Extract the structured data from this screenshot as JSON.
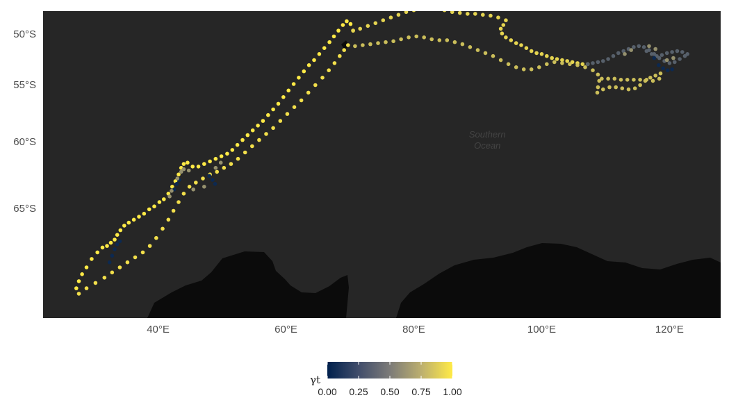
{
  "map": {
    "ocean_label": [
      "Southern",
      "Ocean"
    ],
    "y_axis_labels": [
      {
        "lat": -50,
        "label": "50°S"
      },
      {
        "lat": -55,
        "label": "55°S"
      },
      {
        "lat": -60,
        "label": "60°S"
      },
      {
        "lat": -65,
        "label": "65°S"
      }
    ],
    "x_axis_labels": [
      {
        "lon": 40,
        "label": "40°E"
      },
      {
        "lon": 60,
        "label": "60°E"
      },
      {
        "lon": 80,
        "label": "80°E"
      },
      {
        "lon": 100,
        "label": "100°E"
      },
      {
        "lon": 120,
        "label": "120°E"
      }
    ],
    "colors": {
      "ocean": "#262626",
      "land": "#0b0b0b",
      "low": "#00204d",
      "mid": "#7c7b78",
      "high": "#ffea46"
    }
  },
  "legend": {
    "title": "γt",
    "ticks": [
      "0.00",
      "0.25",
      "0.50",
      "0.75",
      "1.00"
    ],
    "range": [
      0,
      1
    ]
  },
  "chart_data": {
    "type": "scatter",
    "x_label": "",
    "y_label": "",
    "xlim": [
      22,
      128
    ],
    "ylim": [
      -71.5,
      -47.5
    ],
    "tracks": [
      {
        "points": [
          [
            27.2,
            -69.9
          ],
          [
            27.6,
            -69.5
          ],
          [
            28.1,
            -69.1
          ],
          [
            28.8,
            -68.7
          ],
          [
            29.6,
            -68.2
          ],
          [
            30.5,
            -67.8
          ],
          [
            31.3,
            -67.5
          ],
          [
            32.0,
            -67.4
          ],
          [
            32.6,
            -67.2
          ],
          [
            33.2,
            -67.0
          ],
          [
            33.6,
            -66.7
          ],
          [
            34.1,
            -66.4
          ],
          [
            34.7,
            -66.1
          ],
          [
            35.4,
            -65.9
          ],
          [
            36.2,
            -65.7
          ],
          [
            37.0,
            -65.5
          ],
          [
            37.8,
            -65.3
          ],
          [
            38.6,
            -65.0
          ],
          [
            39.4,
            -64.8
          ],
          [
            40.2,
            -64.5
          ],
          [
            40.9,
            -64.3
          ],
          [
            41.6,
            -63.9
          ],
          [
            42.2,
            -63.4
          ],
          [
            42.7,
            -63.0
          ],
          [
            43.2,
            -62.5
          ],
          [
            43.6,
            -62.0
          ],
          [
            44.0,
            -61.7
          ],
          [
            44.6,
            -61.6
          ],
          [
            45.4,
            -61.9
          ],
          [
            46.3,
            -61.9
          ],
          [
            47.2,
            -61.7
          ],
          [
            48.1,
            -61.5
          ],
          [
            49.0,
            -61.3
          ],
          [
            49.9,
            -61.1
          ],
          [
            50.8,
            -60.9
          ],
          [
            51.6,
            -60.6
          ],
          [
            52.4,
            -60.2
          ],
          [
            53.2,
            -59.8
          ],
          [
            54.0,
            -59.4
          ],
          [
            54.8,
            -59.0
          ],
          [
            55.6,
            -58.6
          ],
          [
            56.4,
            -58.2
          ],
          [
            57.2,
            -57.7
          ],
          [
            58.0,
            -57.2
          ],
          [
            58.8,
            -56.7
          ],
          [
            59.6,
            -56.1
          ],
          [
            60.4,
            -55.5
          ],
          [
            61.2,
            -54.9
          ],
          [
            62.0,
            -54.3
          ],
          [
            62.8,
            -53.7
          ],
          [
            63.6,
            -53.1
          ],
          [
            64.4,
            -52.6
          ],
          [
            65.2,
            -52.0
          ],
          [
            66.0,
            -51.4
          ],
          [
            66.8,
            -50.8
          ],
          [
            67.5,
            -50.2
          ],
          [
            68.2,
            -49.6
          ],
          [
            68.9,
            -49.0
          ],
          [
            69.5,
            -48.6
          ],
          [
            70.1,
            -48.9
          ],
          [
            70.5,
            -49.6
          ]
        ],
        "gamma": 1.0
      },
      {
        "points": [
          [
            27.6,
            -70.2
          ],
          [
            28.8,
            -69.9
          ],
          [
            30.2,
            -69.6
          ],
          [
            31.6,
            -69.3
          ],
          [
            32.8,
            -69.0
          ],
          [
            34.0,
            -68.7
          ],
          [
            35.2,
            -68.4
          ],
          [
            36.4,
            -68.1
          ],
          [
            37.6,
            -67.8
          ],
          [
            38.7,
            -67.4
          ],
          [
            39.7,
            -66.9
          ],
          [
            40.7,
            -66.3
          ],
          [
            41.6,
            -65.7
          ],
          [
            42.4,
            -65.1
          ],
          [
            43.2,
            -64.5
          ],
          [
            44.0,
            -63.9
          ],
          [
            44.9,
            -63.4
          ],
          [
            45.9,
            -63.1
          ],
          [
            47.0,
            -62.8
          ],
          [
            48.1,
            -62.5
          ],
          [
            49.2,
            -62.3
          ],
          [
            50.3,
            -62.0
          ],
          [
            51.4,
            -61.7
          ],
          [
            52.5,
            -61.3
          ],
          [
            53.6,
            -60.8
          ],
          [
            54.7,
            -60.3
          ],
          [
            55.8,
            -59.8
          ],
          [
            56.9,
            -59.3
          ],
          [
            58.0,
            -58.8
          ],
          [
            59.1,
            -58.2
          ],
          [
            60.2,
            -57.6
          ],
          [
            61.3,
            -57.0
          ],
          [
            62.4,
            -56.4
          ],
          [
            63.5,
            -55.7
          ],
          [
            64.6,
            -55.0
          ],
          [
            65.7,
            -54.3
          ],
          [
            66.7,
            -53.6
          ],
          [
            67.6,
            -52.9
          ],
          [
            68.4,
            -52.2
          ],
          [
            69.1,
            -51.6
          ],
          [
            69.7,
            -51.1
          ]
        ],
        "gamma": 0.95
      },
      {
        "points": [
          [
            70.5,
            -49.6
          ],
          [
            71.6,
            -49.4
          ],
          [
            72.8,
            -49.1
          ],
          [
            74.0,
            -48.8
          ],
          [
            75.2,
            -48.5
          ],
          [
            76.4,
            -48.2
          ],
          [
            77.6,
            -47.9
          ],
          [
            78.8,
            -47.6
          ],
          [
            80.0,
            -47.4
          ],
          [
            81.2,
            -47.2
          ],
          [
            82.4,
            -47.0
          ],
          [
            83.6,
            -47.1
          ],
          [
            84.8,
            -47.4
          ],
          [
            86.0,
            -47.6
          ],
          [
            87.2,
            -47.7
          ],
          [
            88.4,
            -47.8
          ],
          [
            89.6,
            -47.8
          ],
          [
            90.8,
            -47.9
          ],
          [
            92.0,
            -48.0
          ],
          [
            93.2,
            -48.2
          ],
          [
            94.4,
            -48.5
          ],
          [
            94.0,
            -49.0
          ],
          [
            93.6,
            -49.4
          ],
          [
            93.8,
            -49.9
          ],
          [
            94.4,
            -50.3
          ],
          [
            95.2,
            -50.6
          ],
          [
            96.0,
            -50.9
          ],
          [
            96.8,
            -51.1
          ],
          [
            97.6,
            -51.4
          ],
          [
            98.4,
            -51.7
          ],
          [
            99.2,
            -51.9
          ],
          [
            100.0,
            -52.0
          ],
          [
            100.8,
            -52.2
          ],
          [
            101.6,
            -52.4
          ],
          [
            102.4,
            -52.5
          ],
          [
            103.2,
            -52.6
          ],
          [
            104.0,
            -52.7
          ],
          [
            104.8,
            -52.8
          ],
          [
            105.6,
            -52.9
          ],
          [
            106.4,
            -53.0
          ],
          [
            107.2,
            -53.0
          ]
        ],
        "gamma": 0.9
      },
      {
        "points": [
          [
            107.2,
            -53.0
          ],
          [
            108.0,
            -52.9
          ],
          [
            108.8,
            -52.8
          ],
          [
            109.6,
            -52.7
          ],
          [
            110.4,
            -52.5
          ],
          [
            111.2,
            -52.2
          ],
          [
            112.0,
            -51.9
          ],
          [
            112.8,
            -51.7
          ],
          [
            113.6,
            -51.5
          ],
          [
            114.4,
            -51.3
          ],
          [
            115.2,
            -51.2
          ],
          [
            116.0,
            -51.3
          ],
          [
            116.8,
            -51.6
          ],
          [
            117.6,
            -52.0
          ],
          [
            118.4,
            -52.4
          ],
          [
            119.2,
            -52.7
          ],
          [
            120.0,
            -52.9
          ],
          [
            120.8,
            -52.8
          ],
          [
            121.6,
            -52.5
          ],
          [
            122.4,
            -52.2
          ],
          [
            122.8,
            -52.0
          ],
          [
            122.0,
            -51.8
          ],
          [
            121.2,
            -51.7
          ],
          [
            120.4,
            -51.8
          ],
          [
            119.6,
            -51.9
          ],
          [
            118.8,
            -52.1
          ],
          [
            118.0,
            -52.2
          ],
          [
            117.2,
            -52.0
          ],
          [
            116.4,
            -51.7
          ]
        ],
        "gamma": 0.35
      },
      {
        "points": [
          [
            70.8,
            -51.2
          ],
          [
            72.0,
            -51.1
          ],
          [
            73.2,
            -51.0
          ],
          [
            74.4,
            -50.9
          ],
          [
            75.6,
            -50.8
          ],
          [
            76.8,
            -50.7
          ],
          [
            78.0,
            -50.5
          ],
          [
            79.2,
            -50.3
          ],
          [
            80.4,
            -50.2
          ],
          [
            81.6,
            -50.3
          ],
          [
            82.8,
            -50.5
          ],
          [
            84.0,
            -50.6
          ],
          [
            85.2,
            -50.6
          ],
          [
            86.4,
            -50.8
          ],
          [
            87.6,
            -51.0
          ],
          [
            88.8,
            -51.3
          ],
          [
            90.0,
            -51.6
          ],
          [
            91.2,
            -51.9
          ],
          [
            92.4,
            -52.2
          ],
          [
            93.6,
            -52.6
          ],
          [
            94.8,
            -53.0
          ],
          [
            96.0,
            -53.3
          ],
          [
            97.2,
            -53.5
          ],
          [
            98.4,
            -53.5
          ],
          [
            99.6,
            -53.3
          ],
          [
            100.8,
            -53.0
          ],
          [
            102.0,
            -52.8
          ],
          [
            103.2,
            -52.9
          ],
          [
            104.4,
            -53.0
          ],
          [
            105.6,
            -53.1
          ],
          [
            106.8,
            -53.3
          ],
          [
            108.0,
            -53.6
          ],
          [
            108.8,
            -54.0
          ],
          [
            109.0,
            -54.6
          ],
          [
            108.8,
            -55.2
          ],
          [
            108.7,
            -55.7
          ],
          [
            109.6,
            -55.4
          ],
          [
            110.6,
            -55.2
          ],
          [
            111.6,
            -55.2
          ],
          [
            112.6,
            -55.3
          ],
          [
            113.6,
            -55.4
          ],
          [
            114.6,
            -55.3
          ],
          [
            115.4,
            -55.0
          ],
          [
            116.2,
            -54.6
          ],
          [
            117.0,
            -54.3
          ],
          [
            117.8,
            -54.1
          ],
          [
            118.6,
            -53.9
          ],
          [
            118.4,
            -54.4
          ],
          [
            117.4,
            -54.6
          ],
          [
            116.4,
            -54.5
          ],
          [
            115.4,
            -54.5
          ],
          [
            114.4,
            -54.5
          ],
          [
            113.4,
            -54.5
          ],
          [
            112.4,
            -54.5
          ],
          [
            111.4,
            -54.4
          ],
          [
            110.4,
            -54.4
          ],
          [
            109.4,
            -54.4
          ]
        ],
        "gamma": 0.8
      },
      {
        "points": [
          [
            32.4,
            -68.4
          ],
          [
            32.8,
            -68.0
          ],
          [
            33.2,
            -67.6
          ],
          [
            33.6,
            -67.3
          ],
          [
            34.0,
            -67.1
          ],
          [
            42.5,
            -63.6
          ],
          [
            42.9,
            -63.2
          ],
          [
            43.3,
            -62.9
          ],
          [
            48.0,
            -62.6
          ],
          [
            48.5,
            -62.9
          ],
          [
            48.9,
            -63.2
          ],
          [
            117.6,
            -52.4
          ],
          [
            118.3,
            -53.1
          ],
          [
            119.0,
            -53.4
          ],
          [
            119.7,
            -53.6
          ],
          [
            120.4,
            -53.5
          ]
        ],
        "gamma": 0.05
      },
      {
        "points": [
          [
            41.8,
            -64.1
          ],
          [
            42.1,
            -63.7
          ],
          [
            43.0,
            -62.8
          ],
          [
            43.6,
            -62.3
          ],
          [
            44.0,
            -62.1
          ],
          [
            44.8,
            -62.2
          ],
          [
            45.5,
            -63.6
          ],
          [
            47.2,
            -63.4
          ],
          [
            49.0,
            -62.0
          ],
          [
            49.8,
            -61.6
          ],
          [
            113.0,
            -52.0
          ],
          [
            114.0,
            -51.6
          ],
          [
            116.8,
            -51.2
          ],
          [
            117.8,
            -51.5
          ],
          [
            119.6,
            -52.6
          ],
          [
            120.6,
            -52.4
          ]
        ],
        "gamma": 0.6
      }
    ]
  }
}
